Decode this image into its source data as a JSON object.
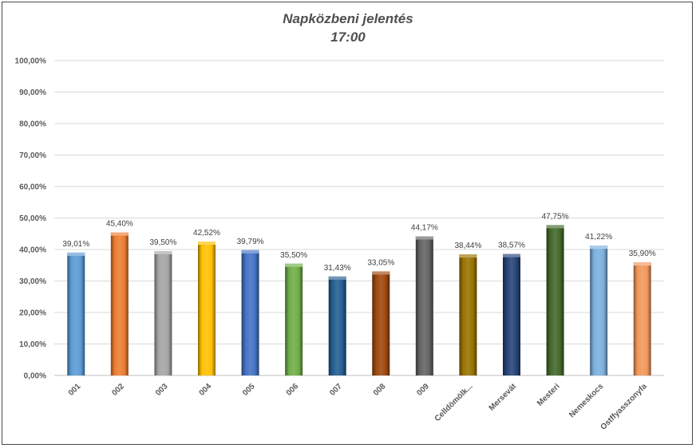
{
  "chart_data": {
    "type": "bar",
    "title": "Napközbeni jelentés",
    "subtitle": "17:00",
    "categories": [
      "001",
      "002",
      "003",
      "004",
      "005",
      "006",
      "007",
      "008",
      "009",
      "Celldömölk...",
      "Mersevát",
      "Mesteri",
      "Nemeskocs",
      "Ostffyasszonyfa"
    ],
    "values": [
      39.01,
      45.4,
      39.5,
      42.52,
      39.79,
      35.5,
      31.43,
      33.05,
      44.17,
      38.44,
      38.57,
      47.75,
      41.22,
      35.9
    ],
    "data_labels": [
      "39,01%",
      "45,40%",
      "39,50%",
      "42,52%",
      "39,79%",
      "35,50%",
      "31,43%",
      "33,05%",
      "44,17%",
      "38,44%",
      "38,57%",
      "47,75%",
      "41,22%",
      "35,90%"
    ],
    "colors": [
      "#5b9bd5",
      "#ed7d31",
      "#a5a5a5",
      "#ffc000",
      "#4472c4",
      "#70ad47",
      "#255e91",
      "#9e480e",
      "#636363",
      "#997300",
      "#264478",
      "#43682b",
      "#7cafdd",
      "#f1975a"
    ],
    "ylim": [
      0,
      100
    ],
    "yticks": [
      0,
      10,
      20,
      30,
      40,
      50,
      60,
      70,
      80,
      90,
      100
    ],
    "ytick_labels": [
      "0,00%",
      "10,00%",
      "20,00%",
      "30,00%",
      "40,00%",
      "50,00%",
      "60,00%",
      "70,00%",
      "80,00%",
      "90,00%",
      "100,00%"
    ],
    "grid": true,
    "legend": "none",
    "xlabel": "",
    "ylabel": ""
  }
}
